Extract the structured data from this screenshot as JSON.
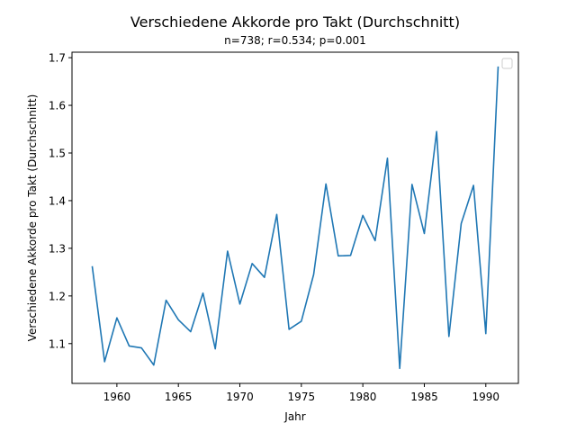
{
  "chart_data": {
    "type": "line",
    "title": "Verschiedene Akkorde pro Takt (Durchschnitt)",
    "subtitle": "n=738; r=0.534; p=0.001",
    "xlabel": "Jahr",
    "ylabel": "Verschiedene Akkorde pro Takt (Durchschnitt)",
    "xlim": [
      1956.35,
      1992.65
    ],
    "ylim": [
      1.0165,
      1.7115
    ],
    "x_ticks": [
      1960,
      1965,
      1970,
      1975,
      1980,
      1985,
      1990
    ],
    "x_tick_labels": [
      "1960",
      "1965",
      "1970",
      "1975",
      "1980",
      "1985",
      "1990"
    ],
    "y_ticks": [
      1.1,
      1.2,
      1.3,
      1.4,
      1.5,
      1.6,
      1.7
    ],
    "y_tick_labels": [
      "1.1",
      "1.2",
      "1.3",
      "1.4",
      "1.5",
      "1.6",
      "1.7"
    ],
    "legend": "top-right",
    "grid": false,
    "line_color": "#1f77b4",
    "series": [
      {
        "name": "",
        "x": [
          1958,
          1959,
          1960,
          1961,
          1962,
          1963,
          1964,
          1965,
          1966,
          1967,
          1968,
          1969,
          1970,
          1971,
          1972,
          1973,
          1974,
          1975,
          1976,
          1977,
          1978,
          1979,
          1980,
          1981,
          1982,
          1983,
          1984,
          1985,
          1986,
          1987,
          1988,
          1989,
          1990,
          1991
        ],
        "values": [
          1.261,
          1.062,
          1.154,
          1.095,
          1.091,
          1.055,
          1.191,
          1.15,
          1.125,
          1.206,
          1.089,
          1.294,
          1.183,
          1.268,
          1.239,
          1.371,
          1.13,
          1.147,
          1.245,
          1.435,
          1.284,
          1.285,
          1.369,
          1.316,
          1.489,
          1.048,
          1.434,
          1.331,
          1.545,
          1.115,
          1.352,
          1.432,
          1.121,
          1.68
        ]
      }
    ]
  }
}
